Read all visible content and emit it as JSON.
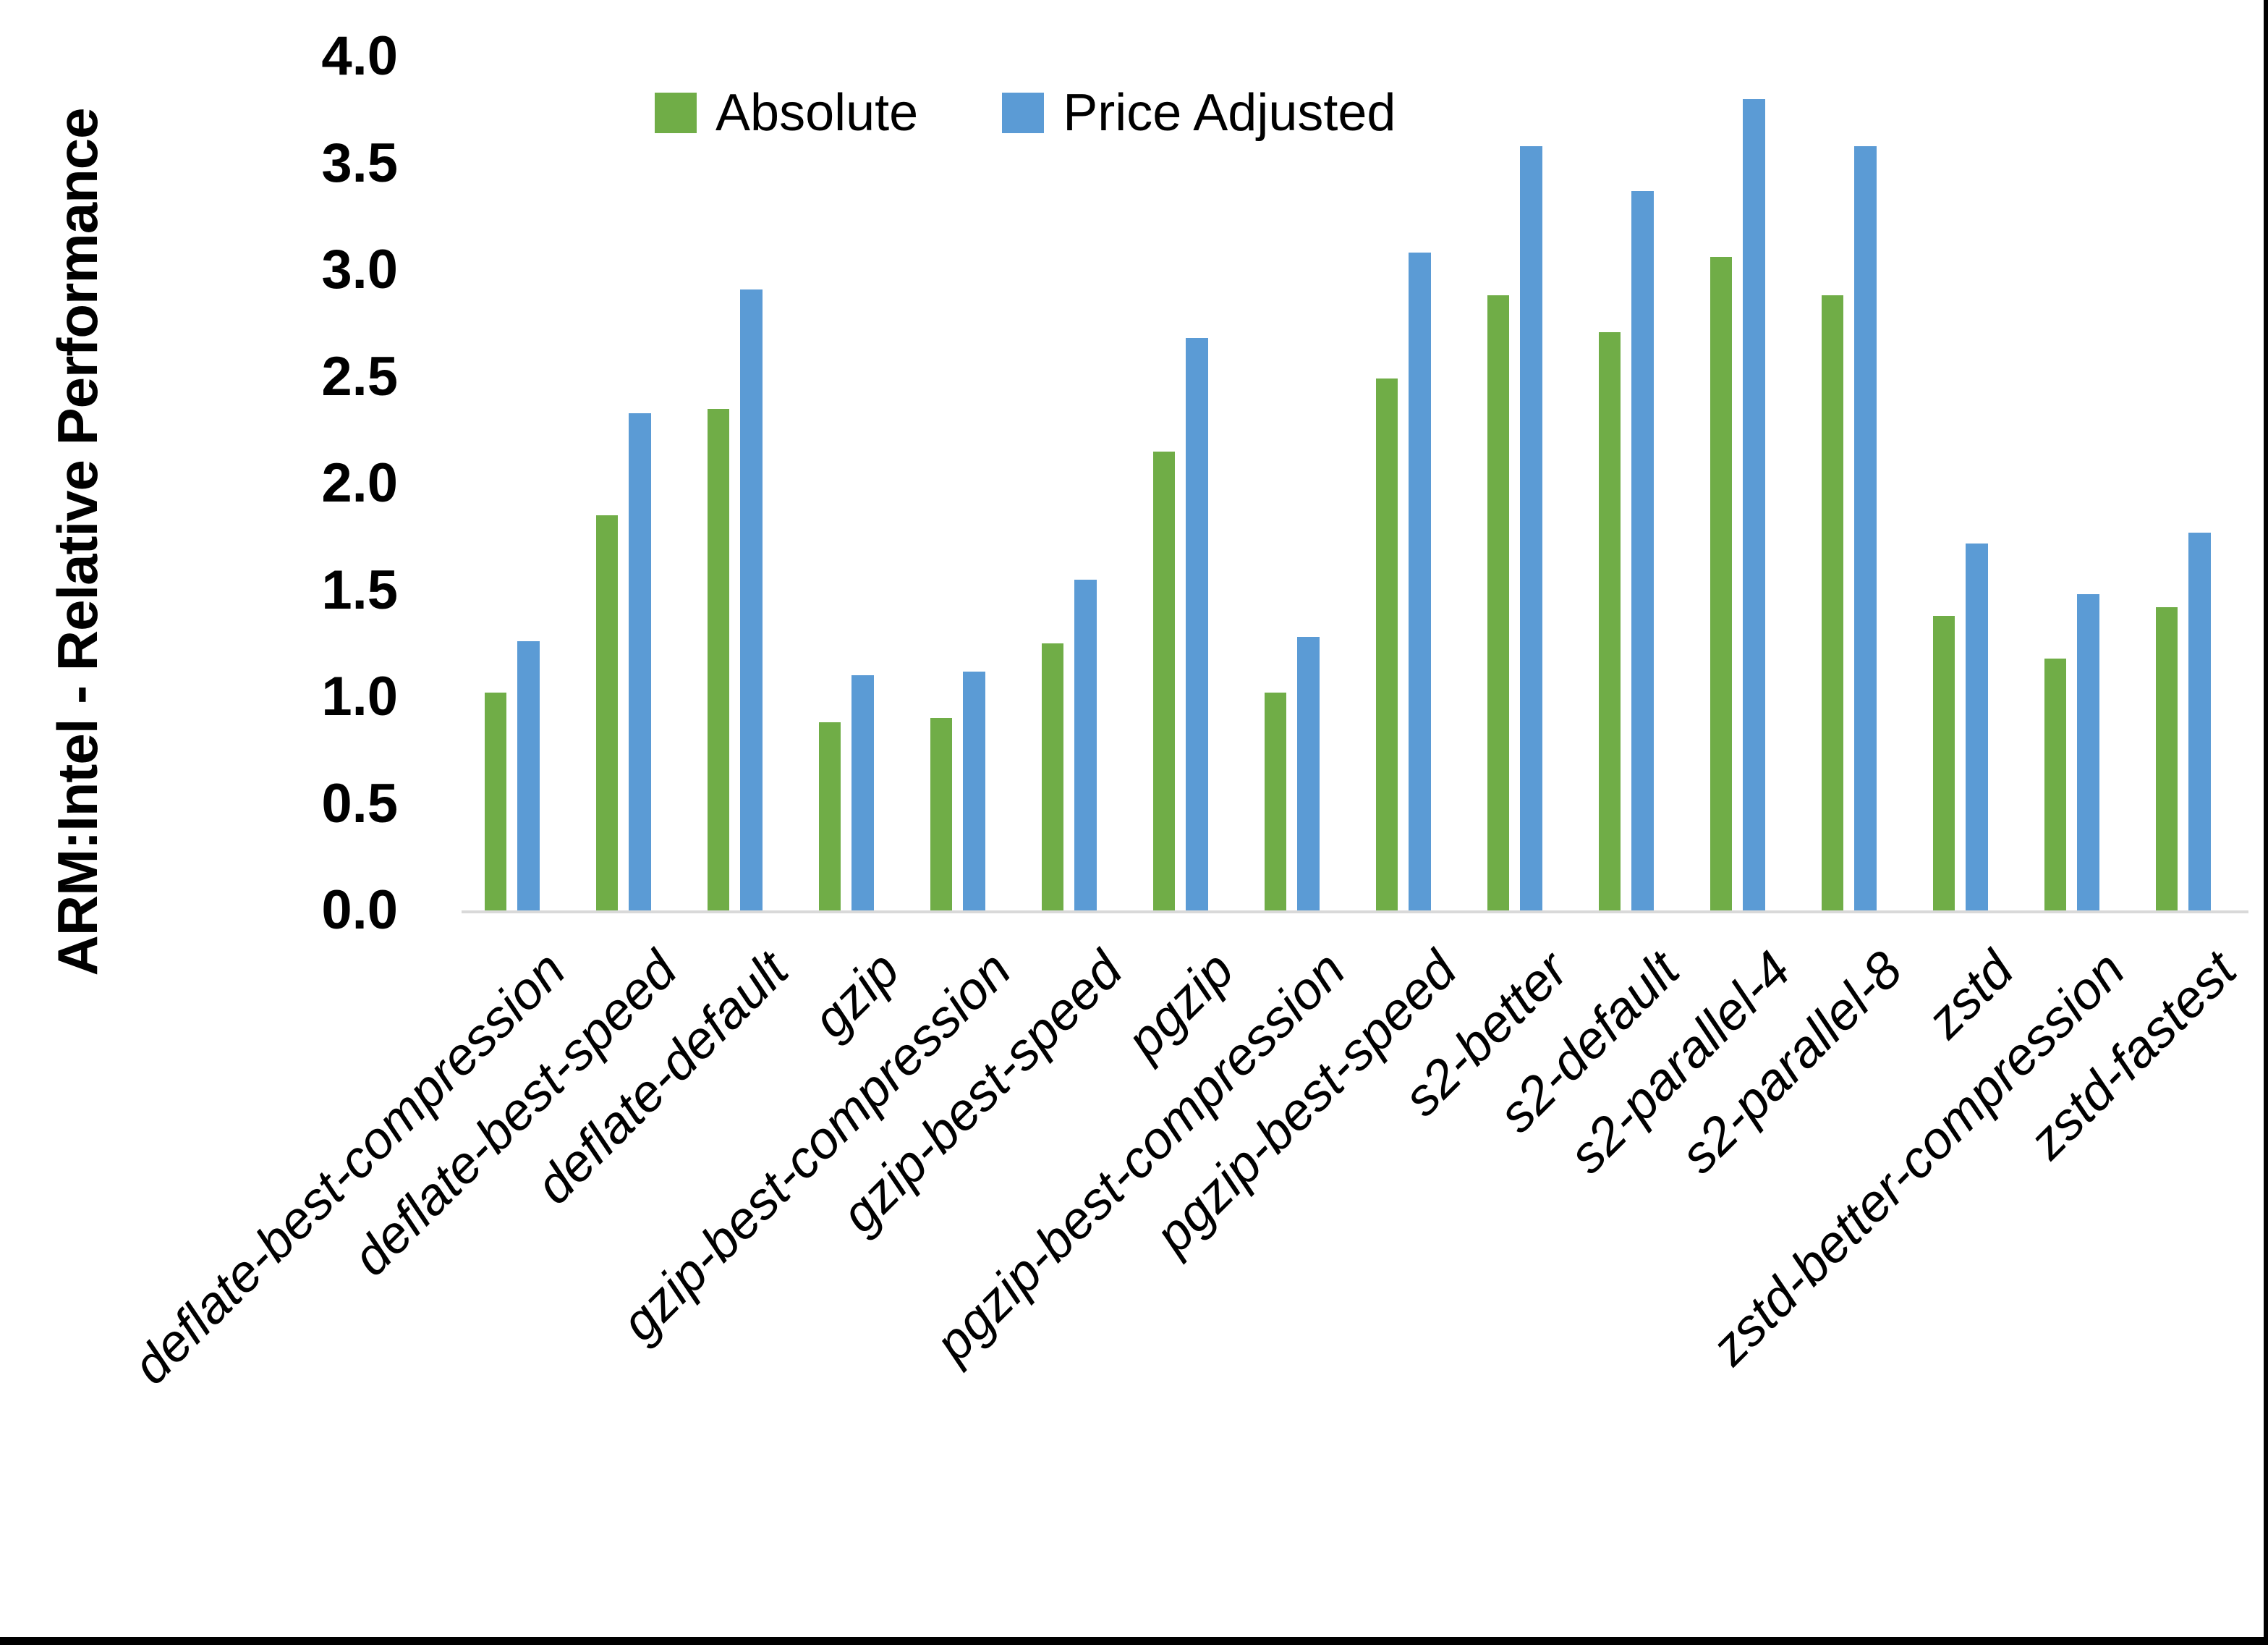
{
  "chart_data": {
    "type": "bar",
    "title": "",
    "ylabel": "ARM:Intel - Relative Performance",
    "xlabel": "",
    "ylim": [
      0.0,
      4.0
    ],
    "yticks": [
      0.0,
      0.5,
      1.0,
      1.5,
      2.0,
      2.5,
      3.0,
      3.5,
      4.0
    ],
    "ytick_labels": [
      "0.0",
      "0.5",
      "1.0",
      "1.5",
      "2.0",
      "2.5",
      "3.0",
      "3.5",
      "4.0"
    ],
    "grid": "off",
    "legend_position": "top-center",
    "categories": [
      "deflate-best-compression",
      "deflate-best-speed",
      "deflate-default",
      "gzip",
      "gzip-best-compression",
      "gzip-best-speed",
      "pgzip",
      "pgzip-best-compression",
      "pgzip-best-speed",
      "s2-better",
      "s2-default",
      "s2-parallel-4",
      "s2-parallel-8",
      "zstd",
      "zstd-better-compression",
      "zstd-fastest"
    ],
    "series": [
      {
        "name": "Absolute",
        "color": "#70AD47",
        "values": [
          1.02,
          1.85,
          2.35,
          0.88,
          0.9,
          1.25,
          2.15,
          1.02,
          2.49,
          2.88,
          2.71,
          3.06,
          2.88,
          1.38,
          1.18,
          1.42
        ]
      },
      {
        "name": "Price Adjusted",
        "color": "#5B9BD5",
        "values": [
          1.26,
          2.33,
          2.91,
          1.1,
          1.12,
          1.55,
          2.68,
          1.28,
          3.08,
          3.58,
          3.37,
          3.8,
          3.58,
          1.72,
          1.48,
          1.77
        ]
      }
    ],
    "axis_line_color": "#D9D9D9",
    "text_color": "#000000",
    "background_color": "#FFFFFF",
    "border_color": "#000000"
  }
}
